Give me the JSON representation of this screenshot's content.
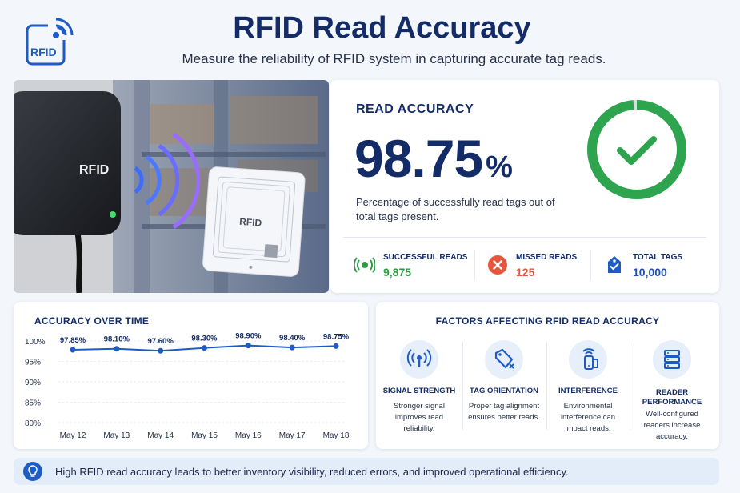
{
  "header": {
    "logo_text": "RFID",
    "title": "RFID Read Accuracy",
    "subtitle": "Measure the reliability of RFID system in capturing accurate tag reads."
  },
  "hero": {
    "reader_label": "RFID",
    "tag_label": "RFID"
  },
  "accuracy": {
    "label": "READ ACCURACY",
    "value": "98.75",
    "unit": "%",
    "description": "Percentage of successfully read tags out of total tags present.",
    "ring_fraction": 0.9875,
    "ring_color": "#2ea44f"
  },
  "stats": [
    {
      "label": "SUCCESSFUL READS",
      "value": "9,875",
      "color": "#2e9a44",
      "icon": "signal-tag-icon"
    },
    {
      "label": "MISSED READS",
      "value": "125",
      "color": "#e4573d",
      "icon": "x-circle-icon"
    },
    {
      "label": "TOTAL TAGS",
      "value": "10,000",
      "color": "#1f4fb5",
      "icon": "tag-check-icon"
    }
  ],
  "chart": {
    "title": "ACCURACY OVER TIME"
  },
  "chart_data": {
    "type": "line",
    "title": "ACCURACY OVER TIME",
    "categories": [
      "May 12",
      "May 13",
      "May 14",
      "May 15",
      "May 16",
      "May 17",
      "May 18"
    ],
    "values": [
      97.85,
      98.1,
      97.6,
      98.3,
      98.9,
      98.4,
      98.75
    ],
    "data_labels": [
      "97.85%",
      "98.10%",
      "97.60%",
      "98.30%",
      "98.90%",
      "98.40%",
      "98.75%"
    ],
    "yticks": [
      "80%",
      "85%",
      "90%",
      "95%",
      "100%"
    ],
    "ylim": [
      80,
      100
    ],
    "grid": true,
    "color": "#1f5bc4"
  },
  "factors": {
    "title": "FACTORS AFFECTING RFID READ ACCURACY",
    "items": [
      {
        "title": "SIGNAL STRENGTH",
        "desc": "Stronger signal improves read reliability.",
        "icon": "antenna-icon"
      },
      {
        "title": "TAG ORIENTATION",
        "desc": "Proper tag alignment ensures better reads.",
        "icon": "tag-icon"
      },
      {
        "title": "INTERFERENCE",
        "desc": "Environmental interference can impact reads.",
        "icon": "interference-icon"
      },
      {
        "title": "READER PERFORMANCE",
        "desc": "Well-configured readers increase accuracy.",
        "icon": "server-icon"
      }
    ]
  },
  "banner": {
    "text": "High RFID read accuracy leads to better inventory visibility, reduced errors, and improved operational efficiency."
  }
}
